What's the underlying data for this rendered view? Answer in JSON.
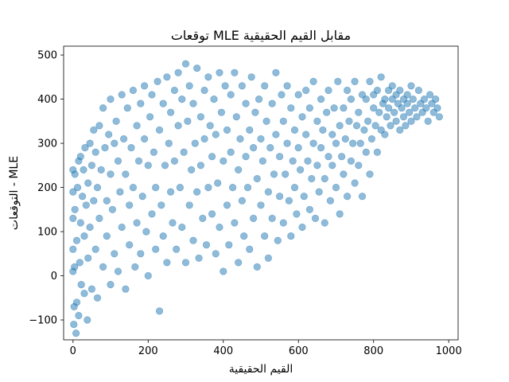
{
  "chart_data": {
    "type": "scatter",
    "title": "توقعات MLE مقابل القيم الحقيقية",
    "xlabel": "القيم الحقيقية",
    "ylabel": "التوقعات - MLE",
    "xlim": [
      -25,
      1025
    ],
    "ylim": [
      -145,
      520
    ],
    "xticks": [
      0,
      200,
      400,
      600,
      800,
      1000
    ],
    "yticks": [
      -100,
      0,
      100,
      200,
      300,
      400,
      500
    ],
    "xtick_labels": [
      "0",
      "200",
      "400",
      "600",
      "800",
      "1000"
    ],
    "ytick_labels": [
      "−100",
      "0",
      "100",
      "200",
      "300",
      "400",
      "500"
    ],
    "grid": false,
    "marker_color": "#1f77b4",
    "marker_alpha": 0.5,
    "points": [
      [
        0,
        10
      ],
      [
        0,
        60
      ],
      [
        0,
        130
      ],
      [
        0,
        190
      ],
      [
        0,
        240
      ],
      [
        2,
        -110
      ],
      [
        3,
        -70
      ],
      [
        4,
        20
      ],
      [
        5,
        150
      ],
      [
        5,
        230
      ],
      [
        8,
        -130
      ],
      [
        10,
        -60
      ],
      [
        10,
        80
      ],
      [
        12,
        200
      ],
      [
        15,
        260
      ],
      [
        15,
        -90
      ],
      [
        18,
        30
      ],
      [
        20,
        120
      ],
      [
        20,
        270
      ],
      [
        22,
        -20
      ],
      [
        25,
        180
      ],
      [
        28,
        240
      ],
      [
        30,
        -40
      ],
      [
        30,
        90
      ],
      [
        32,
        290
      ],
      [
        35,
        160
      ],
      [
        38,
        -100
      ],
      [
        40,
        40
      ],
      [
        40,
        210
      ],
      [
        45,
        300
      ],
      [
        45,
        110
      ],
      [
        50,
        250
      ],
      [
        50,
        -30
      ],
      [
        55,
        170
      ],
      [
        55,
        330
      ],
      [
        60,
        60
      ],
      [
        60,
        280
      ],
      [
        65,
        200
      ],
      [
        65,
        -50
      ],
      [
        70,
        340
      ],
      [
        70,
        130
      ],
      [
        75,
        240
      ],
      [
        80,
        20
      ],
      [
        80,
        380
      ],
      [
        85,
        290
      ],
      [
        90,
        170
      ],
      [
        90,
        90
      ],
      [
        95,
        320
      ],
      [
        100,
        230
      ],
      [
        100,
        -20
      ],
      [
        100,
        400
      ],
      [
        105,
        150
      ],
      [
        110,
        300
      ],
      [
        110,
        50
      ],
      [
        115,
        350
      ],
      [
        120,
        260
      ],
      [
        120,
        10
      ],
      [
        125,
        190
      ],
      [
        130,
        410
      ],
      [
        130,
        110
      ],
      [
        135,
        310
      ],
      [
        140,
        -30
      ],
      [
        140,
        230
      ],
      [
        145,
        380
      ],
      [
        150,
        160
      ],
      [
        150,
        70
      ],
      [
        155,
        290
      ],
      [
        160,
        420
      ],
      [
        160,
        200
      ],
      [
        165,
        20
      ],
      [
        170,
        340
      ],
      [
        170,
        120
      ],
      [
        175,
        260
      ],
      [
        180,
        390
      ],
      [
        180,
        50
      ],
      [
        185,
        180
      ],
      [
        190,
        310
      ],
      [
        190,
        430
      ],
      [
        195,
        100
      ],
      [
        200,
        250
      ],
      [
        200,
        0
      ],
      [
        205,
        360
      ],
      [
        210,
        140
      ],
      [
        210,
        410
      ],
      [
        215,
        280
      ],
      [
        220,
        60
      ],
      [
        220,
        200
      ],
      [
        225,
        440
      ],
      [
        230,
        -80
      ],
      [
        230,
        330
      ],
      [
        235,
        160
      ],
      [
        240,
        390
      ],
      [
        240,
        90
      ],
      [
        245,
        250
      ],
      [
        250,
        450
      ],
      [
        250,
        30
      ],
      [
        255,
        300
      ],
      [
        260,
        190
      ],
      [
        260,
        370
      ],
      [
        265,
        120
      ],
      [
        270,
        420
      ],
      [
        270,
        260
      ],
      [
        275,
        60
      ],
      [
        280,
        340
      ],
      [
        280,
        460
      ],
      [
        285,
        200
      ],
      [
        290,
        110
      ],
      [
        290,
        400
      ],
      [
        295,
        280
      ],
      [
        300,
        480
      ],
      [
        300,
        30
      ],
      [
        305,
        350
      ],
      [
        310,
        160
      ],
      [
        310,
        430
      ],
      [
        315,
        240
      ],
      [
        320,
        80
      ],
      [
        320,
        390
      ],
      [
        325,
        300
      ],
      [
        330,
        190
      ],
      [
        330,
        470
      ],
      [
        335,
        40
      ],
      [
        340,
        360
      ],
      [
        340,
        250
      ],
      [
        345,
        130
      ],
      [
        350,
        420
      ],
      [
        350,
        310
      ],
      [
        355,
        70
      ],
      [
        360,
        200
      ],
      [
        360,
        450
      ],
      [
        365,
        340
      ],
      [
        370,
        140
      ],
      [
        370,
        270
      ],
      [
        375,
        400
      ],
      [
        380,
        50
      ],
      [
        380,
        320
      ],
      [
        385,
        210
      ],
      [
        390,
        460
      ],
      [
        390,
        110
      ],
      [
        395,
        370
      ],
      [
        400,
        260
      ],
      [
        400,
        10
      ],
      [
        405,
        430
      ],
      [
        410,
        160
      ],
      [
        410,
        330
      ],
      [
        415,
        70
      ],
      [
        420,
        280
      ],
      [
        420,
        410
      ],
      [
        425,
        200
      ],
      [
        430,
        460
      ],
      [
        430,
        120
      ],
      [
        435,
        360
      ],
      [
        440,
        240
      ],
      [
        440,
        30
      ],
      [
        445,
        310
      ],
      [
        450,
        170
      ],
      [
        450,
        430
      ],
      [
        455,
        90
      ],
      [
        460,
        270
      ],
      [
        460,
        390
      ],
      [
        465,
        200
      ],
      [
        470,
        330
      ],
      [
        470,
        60
      ],
      [
        475,
        450
      ],
      [
        480,
        130
      ],
      [
        480,
        290
      ],
      [
        485,
        370
      ],
      [
        490,
        220
      ],
      [
        490,
        20
      ],
      [
        495,
        400
      ],
      [
        500,
        160
      ],
      [
        500,
        310
      ],
      [
        505,
        260
      ],
      [
        510,
        90
      ],
      [
        510,
        430
      ],
      [
        515,
        350
      ],
      [
        520,
        190
      ],
      [
        520,
        40
      ],
      [
        525,
        290
      ],
      [
        530,
        390
      ],
      [
        530,
        130
      ],
      [
        535,
        230
      ],
      [
        540,
        460
      ],
      [
        540,
        320
      ],
      [
        545,
        80
      ],
      [
        550,
        270
      ],
      [
        550,
        180
      ],
      [
        555,
        410
      ],
      [
        560,
        350
      ],
      [
        560,
        120
      ],
      [
        565,
        230
      ],
      [
        570,
        300
      ],
      [
        570,
        430
      ],
      [
        575,
        170
      ],
      [
        580,
        380
      ],
      [
        580,
        90
      ],
      [
        585,
        260
      ],
      [
        590,
        330
      ],
      [
        590,
        200
      ],
      [
        595,
        140
      ],
      [
        600,
        410
      ],
      [
        600,
        290
      ],
      [
        605,
        240
      ],
      [
        610,
        360
      ],
      [
        610,
        110
      ],
      [
        615,
        180
      ],
      [
        620,
        320
      ],
      [
        620,
        420
      ],
      [
        625,
        260
      ],
      [
        630,
        150
      ],
      [
        630,
        380
      ],
      [
        635,
        220
      ],
      [
        640,
        300
      ],
      [
        640,
        440
      ],
      [
        645,
        130
      ],
      [
        650,
        350
      ],
      [
        650,
        250
      ],
      [
        655,
        190
      ],
      [
        660,
        400
      ],
      [
        660,
        290
      ],
      [
        665,
        330
      ],
      [
        670,
        220
      ],
      [
        670,
        120
      ],
      [
        675,
        370
      ],
      [
        680,
        270
      ],
      [
        680,
        420
      ],
      [
        685,
        170
      ],
      [
        690,
        320
      ],
      [
        690,
        250
      ],
      [
        695,
        380
      ],
      [
        700,
        200
      ],
      [
        700,
        300
      ],
      [
        705,
        440
      ],
      [
        710,
        340
      ],
      [
        710,
        140
      ],
      [
        715,
        270
      ],
      [
        720,
        380
      ],
      [
        720,
        230
      ],
      [
        725,
        310
      ],
      [
        730,
        420
      ],
      [
        730,
        180
      ],
      [
        735,
        350
      ],
      [
        740,
        260
      ],
      [
        740,
        400
      ],
      [
        745,
        300
      ],
      [
        750,
        210
      ],
      [
        750,
        440
      ],
      [
        755,
        340
      ],
      [
        760,
        370
      ],
      [
        760,
        250
      ],
      [
        765,
        300
      ],
      [
        770,
        410
      ],
      [
        770,
        180
      ],
      [
        775,
        330
      ],
      [
        780,
        280
      ],
      [
        780,
        400
      ],
      [
        785,
        350
      ],
      [
        790,
        230
      ],
      [
        790,
        440
      ],
      [
        795,
        310
      ],
      [
        800,
        380
      ],
      [
        800,
        410
      ],
      [
        805,
        340
      ],
      [
        810,
        280
      ],
      [
        810,
        420
      ],
      [
        815,
        370
      ],
      [
        820,
        330
      ],
      [
        820,
        450
      ],
      [
        825,
        390
      ],
      [
        830,
        320
      ],
      [
        830,
        400
      ],
      [
        835,
        360
      ],
      [
        840,
        420
      ],
      [
        840,
        380
      ],
      [
        845,
        340
      ],
      [
        850,
        400
      ],
      [
        850,
        430
      ],
      [
        855,
        370
      ],
      [
        860,
        350
      ],
      [
        860,
        410
      ],
      [
        865,
        390
      ],
      [
        870,
        330
      ],
      [
        870,
        420
      ],
      [
        875,
        380
      ],
      [
        880,
        360
      ],
      [
        880,
        400
      ],
      [
        885,
        340
      ],
      [
        890,
        410
      ],
      [
        890,
        390
      ],
      [
        895,
        370
      ],
      [
        900,
        430
      ],
      [
        900,
        350
      ],
      [
        905,
        400
      ],
      [
        910,
        380
      ],
      [
        915,
        360
      ],
      [
        920,
        420
      ],
      [
        925,
        390
      ],
      [
        930,
        370
      ],
      [
        935,
        400
      ],
      [
        940,
        380
      ],
      [
        945,
        350
      ],
      [
        950,
        410
      ],
      [
        955,
        390
      ],
      [
        960,
        370
      ],
      [
        965,
        400
      ],
      [
        970,
        380
      ],
      [
        975,
        360
      ]
    ]
  }
}
